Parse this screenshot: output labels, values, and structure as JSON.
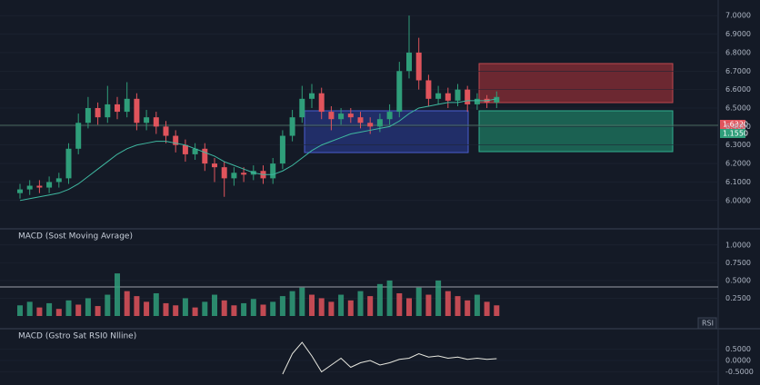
{
  "chart_data": [
    {
      "type": "candlestick",
      "up_color": "#2f9e7a",
      "down_color": "#e0545c",
      "open": [
        6.04,
        6.06,
        6.08,
        6.07,
        6.1,
        6.12,
        6.28,
        6.42,
        6.5,
        6.45,
        6.52,
        6.48,
        6.55,
        6.42,
        6.45,
        6.4,
        6.35,
        6.3,
        6.25,
        6.28,
        6.2,
        6.18,
        6.12,
        6.15,
        6.14,
        6.16,
        6.12,
        6.2,
        6.35,
        6.45,
        6.55,
        6.58,
        6.48,
        6.44,
        6.47,
        6.45,
        6.42,
        6.4,
        6.44,
        6.48,
        6.7,
        6.8,
        6.65,
        6.55,
        6.58,
        6.54,
        6.6,
        6.52,
        6.55,
        6.53
      ],
      "high": [
        6.09,
        6.11,
        6.11,
        6.13,
        6.15,
        6.31,
        6.47,
        6.56,
        6.53,
        6.62,
        6.56,
        6.64,
        6.58,
        6.49,
        6.48,
        6.43,
        6.38,
        6.33,
        6.31,
        6.31,
        6.23,
        6.21,
        6.18,
        6.18,
        6.19,
        6.19,
        6.23,
        6.38,
        6.49,
        6.62,
        6.63,
        6.61,
        6.51,
        6.5,
        6.5,
        6.48,
        6.45,
        6.47,
        6.52,
        6.75,
        7.0,
        6.88,
        6.68,
        6.62,
        6.61,
        6.63,
        6.62,
        6.58,
        6.57,
        6.59
      ],
      "low": [
        6.01,
        6.03,
        6.04,
        6.04,
        6.07,
        6.09,
        6.25,
        6.39,
        6.41,
        6.42,
        6.44,
        6.45,
        6.38,
        6.38,
        6.36,
        6.31,
        6.26,
        6.21,
        6.22,
        6.16,
        6.1,
        6.02,
        6.08,
        6.1,
        6.11,
        6.09,
        6.09,
        6.17,
        6.32,
        6.42,
        6.5,
        6.44,
        6.38,
        6.41,
        6.42,
        6.39,
        6.36,
        6.37,
        6.41,
        6.45,
        6.66,
        6.6,
        6.51,
        6.52,
        6.5,
        6.51,
        6.48,
        6.49,
        6.5,
        6.5
      ],
      "close": [
        6.06,
        6.08,
        6.07,
        6.1,
        6.12,
        6.28,
        6.42,
        6.5,
        6.45,
        6.52,
        6.48,
        6.55,
        6.42,
        6.45,
        6.4,
        6.35,
        6.3,
        6.25,
        6.28,
        6.2,
        6.18,
        6.12,
        6.15,
        6.14,
        6.16,
        6.12,
        6.2,
        6.35,
        6.45,
        6.55,
        6.58,
        6.48,
        6.44,
        6.47,
        6.45,
        6.42,
        6.4,
        6.44,
        6.48,
        6.7,
        6.8,
        6.65,
        6.55,
        6.58,
        6.54,
        6.6,
        6.52,
        6.55,
        6.53,
        6.56
      ],
      "series": [
        {
          "color": "#3fb8a0",
          "values": [
            6.0,
            6.01,
            6.02,
            6.03,
            6.04,
            6.06,
            6.09,
            6.13,
            6.17,
            6.21,
            6.25,
            6.28,
            6.3,
            6.31,
            6.32,
            6.32,
            6.31,
            6.3,
            6.28,
            6.26,
            6.24,
            6.21,
            6.19,
            6.17,
            6.15,
            6.14,
            6.14,
            6.16,
            6.19,
            6.23,
            6.27,
            6.3,
            6.32,
            6.34,
            6.36,
            6.37,
            6.38,
            6.39,
            6.4,
            6.43,
            6.47,
            6.5,
            6.51,
            6.52,
            6.53,
            6.53,
            6.54,
            6.54,
            6.54,
            6.55
          ]
        }
      ],
      "ylim": [
        5.95,
        7.05
      ],
      "yticks": [
        {
          "value": 7,
          "label": "7.0000"
        },
        {
          "value": 6.9,
          "label": "6.9000"
        },
        {
          "value": 6.8,
          "label": "6.8000"
        },
        {
          "value": 6.7,
          "label": "6.7000"
        },
        {
          "value": 6.6,
          "label": "6.6000"
        },
        {
          "value": 6.5,
          "label": "6.5000"
        },
        {
          "value": 6.4,
          "label": "6.4000"
        },
        {
          "value": 6.3,
          "label": "6.3000"
        },
        {
          "value": 6.2,
          "label": "6.2000"
        },
        {
          "value": 6.1,
          "label": "6.1000"
        },
        {
          "value": 6,
          "label": "6.0000"
        }
      ],
      "price_tags": [
        "1.6320",
        "1.1550"
      ]
    },
    {
      "type": "bar",
      "title": "MACD (Sost Moving Avrage)",
      "up_color": "#2f9e7a",
      "down_color": "#e0545c",
      "values": [
        0.15,
        0.2,
        0.12,
        0.18,
        0.1,
        0.22,
        0.16,
        0.25,
        0.14,
        0.3,
        0.6,
        0.35,
        0.28,
        0.2,
        0.32,
        0.18,
        0.15,
        0.25,
        0.12,
        0.2,
        0.3,
        0.22,
        0.15,
        0.18,
        0.24,
        0.16,
        0.2,
        0.28,
        0.35,
        0.4,
        0.3,
        0.25,
        0.2,
        0.3,
        0.22,
        0.35,
        0.28,
        0.45,
        0.5,
        0.32,
        0.25,
        0.4,
        0.3,
        0.5,
        0.35,
        0.28,
        0.22,
        0.3,
        0.2,
        0.15
      ],
      "ylim": [
        0,
        1.1
      ],
      "yticks": [
        {
          "value": 1,
          "label": "1.0000"
        },
        {
          "value": 0.75,
          "label": "0.7500"
        },
        {
          "value": 0.5,
          "label": "0.5000"
        },
        {
          "value": 0.25,
          "label": "0.2500"
        }
      ],
      "button": "RSI"
    },
    {
      "type": "line",
      "title": "MACD (Gstro Sat RSI0 Nlline)",
      "color": "#e8e8e0",
      "values": [
        null,
        null,
        null,
        null,
        null,
        null,
        null,
        null,
        null,
        null,
        null,
        null,
        null,
        null,
        null,
        null,
        null,
        null,
        null,
        null,
        null,
        null,
        null,
        null,
        null,
        null,
        null,
        -0.6,
        0.3,
        0.8,
        0.2,
        -0.5,
        -0.2,
        0.1,
        -0.3,
        -0.1,
        0.0,
        -0.2,
        -0.1,
        0.05,
        0.1,
        0.3,
        0.15,
        0.2,
        0.1,
        0.15,
        0.05,
        0.1,
        0.05,
        0.08
      ],
      "ylim": [
        -1,
        1
      ],
      "yticks": [
        {
          "value": 0.5,
          "label": "0.5000"
        },
        {
          "value": 0,
          "label": "0.0000"
        },
        {
          "value": -0.5,
          "label": "-0.5000"
        }
      ]
    }
  ]
}
